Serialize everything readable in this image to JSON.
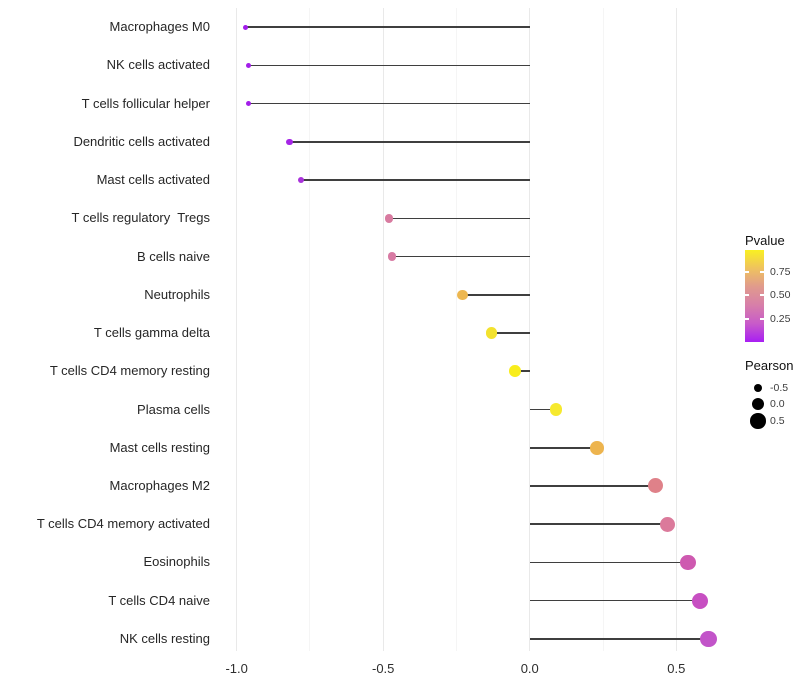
{
  "chart_data": {
    "type": "scatter",
    "variant": "lollipop",
    "orientation": "horizontal",
    "title": "",
    "xlabel": "",
    "ylabel": "",
    "baseline_x": 0,
    "xlim": [
      -1.05,
      0.69
    ],
    "x_major_ticks": [
      -1.0,
      -0.5,
      0.0,
      0.5
    ],
    "x_major_tick_labels": [
      "-1.0",
      "-0.5",
      "0.0",
      "0.5"
    ],
    "x_minor_ticks": [
      -0.75,
      -0.25,
      0.25
    ],
    "grid": "vertical-only",
    "legend_position": "right",
    "categories": [
      "Macrophages M0",
      "NK cells activated",
      "T cells follicular helper",
      "Dendritic cells activated",
      "Mast cells activated",
      "T cells regulatory  Tregs",
      "B cells naive",
      "Neutrophils",
      "T cells gamma delta",
      "T cells CD4 memory resting",
      "Plasma cells",
      "Mast cells resting",
      "Macrophages M2",
      "T cells CD4 memory activated",
      "Eosinophils",
      "T cells CD4 naive",
      "NK cells resting"
    ],
    "points": [
      {
        "label": "Macrophages M0",
        "pearson": -0.97,
        "pvalue": 0.02,
        "color": "#a11cea"
      },
      {
        "label": "NK cells activated",
        "pearson": -0.96,
        "pvalue": 0.03,
        "color": "#a31ee9"
      },
      {
        "label": "T cells follicular helper",
        "pearson": -0.96,
        "pvalue": 0.03,
        "color": "#a31ee9"
      },
      {
        "label": "Dendritic cells activated",
        "pearson": -0.82,
        "pvalue": 0.08,
        "color": "#a525e6"
      },
      {
        "label": "Mast cells activated",
        "pearson": -0.78,
        "pvalue": 0.12,
        "color": "#a932db"
      },
      {
        "label": "T cells regulatory  Tregs",
        "pearson": -0.48,
        "pvalue": 0.45,
        "color": "#d87ba0"
      },
      {
        "label": "B cells naive",
        "pearson": -0.47,
        "pvalue": 0.46,
        "color": "#d87ba4"
      },
      {
        "label": "Neutrophils",
        "pearson": -0.23,
        "pvalue": 0.68,
        "color": "#edb750"
      },
      {
        "label": "T cells gamma delta",
        "pearson": -0.13,
        "pvalue": 0.82,
        "color": "#f3e22e"
      },
      {
        "label": "T cells CD4 memory resting",
        "pearson": -0.05,
        "pvalue": 0.93,
        "color": "#f8ed1c"
      },
      {
        "label": "Plasma cells",
        "pearson": 0.09,
        "pvalue": 0.88,
        "color": "#f6e92e"
      },
      {
        "label": "Mast cells resting",
        "pearson": 0.23,
        "pvalue": 0.68,
        "color": "#edb44e"
      },
      {
        "label": "Macrophages M2",
        "pearson": 0.43,
        "pvalue": 0.55,
        "color": "#df8189"
      },
      {
        "label": "T cells CD4 memory activated",
        "pearson": 0.47,
        "pvalue": 0.47,
        "color": "#db7a9b"
      },
      {
        "label": "Eosinophils",
        "pearson": 0.54,
        "pvalue": 0.3,
        "color": "#ce59b0"
      },
      {
        "label": "T cells CD4 naive",
        "pearson": 0.58,
        "pvalue": 0.23,
        "color": "#c74fc2"
      },
      {
        "label": "NK cells resting",
        "pearson": 0.61,
        "pvalue": 0.21,
        "color": "#c254c9"
      }
    ]
  },
  "legend": {
    "pvalue": {
      "title": "Pvalue",
      "tick_labels": [
        "0.75",
        "0.50",
        "0.25"
      ],
      "tick_values": [
        0.75,
        0.5,
        0.25
      ],
      "bar_range": [
        0.0,
        0.98
      ],
      "gradient_stops_bottom_to_top": [
        "#a81ef3",
        "#c85bc9",
        "#d77fa9",
        "#e09a8d",
        "#efc25f",
        "#f9f022"
      ]
    },
    "pearson": {
      "title": "Pearson",
      "entries": [
        {
          "label": "-0.5",
          "value": -0.5
        },
        {
          "label": "0.0",
          "value": 0.0
        },
        {
          "label": "0.5",
          "value": 0.5
        }
      ],
      "dot_color": "#000000"
    }
  },
  "colors": {
    "background": "#ffffff",
    "grid_major": "#e9e9e9",
    "grid_minor": "#f5f5f5",
    "segment": "#3f3f3f",
    "axis_text": "#262626",
    "legend_text": "#3d3d3d"
  }
}
